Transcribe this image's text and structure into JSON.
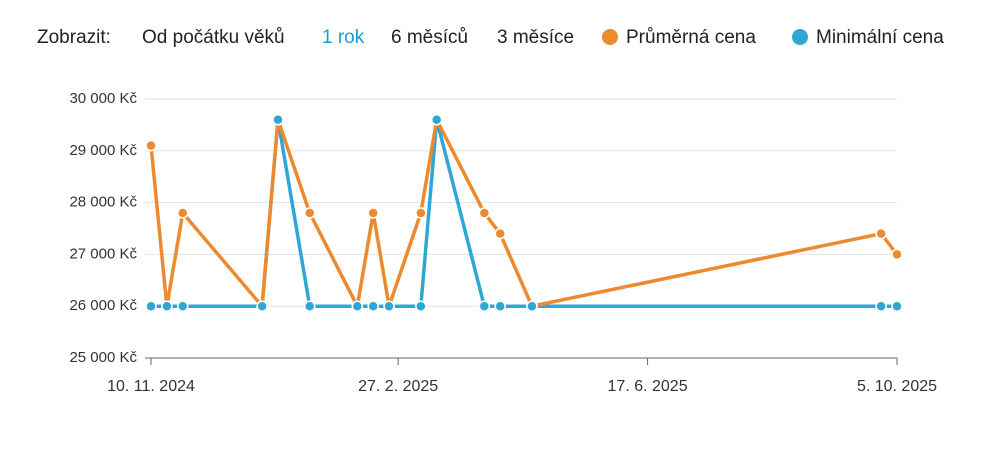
{
  "nav": {
    "label": "Zobrazit:",
    "options": [
      "Od počátku věků",
      "1 rok",
      "6 měsíců",
      "3 měsíce"
    ],
    "selected": 1,
    "selected_color": "#1a9bd7"
  },
  "chart_data": {
    "type": "line",
    "x": [
      "2024-11-10",
      "2024-11-17",
      "2024-11-24",
      "2024-12-29",
      "2025-01-05",
      "2025-01-19",
      "2025-02-09",
      "2025-02-16",
      "2025-02-23",
      "2025-03-09",
      "2025-03-16",
      "2025-04-06",
      "2025-04-13",
      "2025-04-27",
      "2025-09-28",
      "2025-10-05"
    ],
    "series": [
      {
        "name": "Průměrná cena",
        "color": "#ec8a2f",
        "values": [
          29100,
          26000,
          27800,
          26000,
          29600,
          27800,
          26000,
          27800,
          26000,
          27800,
          29600,
          27800,
          27400,
          26000,
          27400,
          27000
        ]
      },
      {
        "name": "Minimální cena",
        "color": "#2fa6d4",
        "values": [
          26000,
          26000,
          26000,
          26000,
          29600,
          26000,
          26000,
          26000,
          26000,
          26000,
          29600,
          26000,
          26000,
          26000,
          26000,
          26000
        ]
      }
    ],
    "ylim": [
      25000,
      30000
    ],
    "yticks": [
      {
        "value": 25000,
        "label": "25 000 Kč"
      },
      {
        "value": 26000,
        "label": "26 000 Kč"
      },
      {
        "value": 27000,
        "label": "27 000 Kč"
      },
      {
        "value": 28000,
        "label": "28 000 Kč"
      },
      {
        "value": 29000,
        "label": "29 000 Kč"
      },
      {
        "value": 30000,
        "label": "30 000 Kč"
      }
    ],
    "xlim": [
      "2024-11-10",
      "2025-10-05"
    ],
    "xticks": [
      {
        "value": "2024-11-10",
        "label": "10. 11. 2024"
      },
      {
        "value": "2025-02-27",
        "label": "27. 2. 2025"
      },
      {
        "value": "2025-06-17",
        "label": "17. 6. 2025"
      },
      {
        "value": "2025-10-05",
        "label": "5. 10. 2025"
      }
    ],
    "grid": true
  }
}
